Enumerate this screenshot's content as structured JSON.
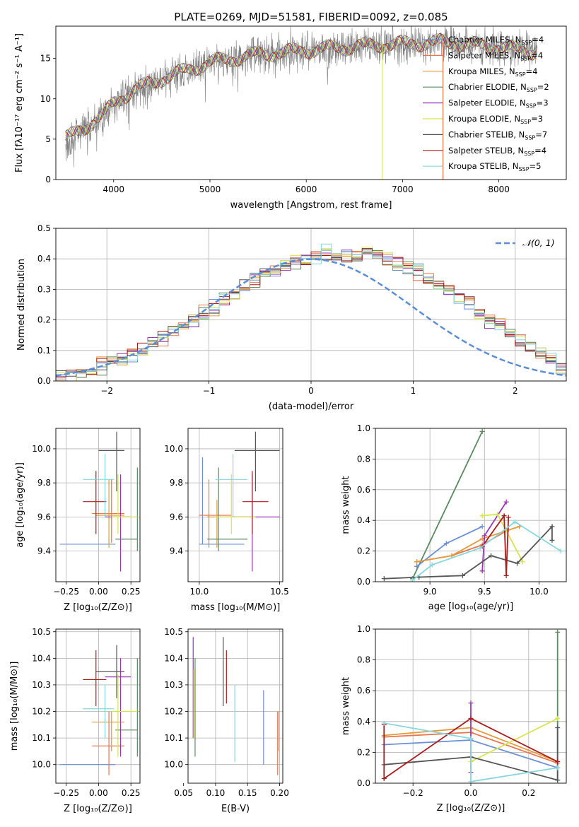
{
  "title": "PLATE=0269, MJD=51581, FIBERID=0092, z=0.085",
  "colors": {
    "cmiles": "#6b8fd6",
    "smiles": "#e9754c",
    "kmiles": "#e39a3a",
    "celodie": "#5a8a5f",
    "selodie": "#9b36b7",
    "kelodie": "#d7e54c",
    "cstelib": "#555555",
    "sstelib": "#ab1c1c",
    "kstelib": "#86d8dd",
    "data": "#7f7f7f",
    "gauss": "#5b8ed6"
  },
  "legend_models": [
    {
      "pre": "Chabrier MILES, N",
      "sub": "SSP",
      "post": "=4",
      "color": "#6b8fd6"
    },
    {
      "pre": "Salpeter MILES, N",
      "sub": "SSP",
      "post": "=4",
      "color": "#e9754c"
    },
    {
      "pre": "Kroupa MILES, N",
      "sub": "SSP",
      "post": "=4",
      "color": "#e39a3a"
    },
    {
      "pre": "Chabrier ELODIE, N",
      "sub": "SSP",
      "post": "=2",
      "color": "#5a8a5f"
    },
    {
      "pre": "Salpeter ELODIE, N",
      "sub": "SSP",
      "post": "=3",
      "color": "#9b36b7"
    },
    {
      "pre": "Kroupa ELODIE, N",
      "sub": "SSP",
      "post": "=3",
      "color": "#d7e54c"
    },
    {
      "pre": "Chabrier STELIB, N",
      "sub": "SSP",
      "post": "=7",
      "color": "#555555"
    },
    {
      "pre": "Salpeter STELIB, N",
      "sub": "SSP",
      "post": "=4",
      "color": "#ab1c1c"
    },
    {
      "pre": "Kroupa STELIB, N",
      "sub": "SSP",
      "post": "=5",
      "color": "#86d8dd"
    }
  ],
  "chart_data": [
    {
      "type": "line",
      "xlabel": "wavelength [Angstrom, rest frame]",
      "ylabel": "Flux [fλ10⁻¹⁷ erg cm⁻² s⁻¹ A⁻¹]",
      "xlim": [
        3400,
        8700
      ],
      "ylim": [
        0,
        19
      ],
      "xticks": [
        "4000",
        "5000",
        "6000",
        "7000",
        "8000"
      ],
      "yticks": [
        "0",
        "5",
        "10",
        "15"
      ],
      "continuum": {
        "x": [
          3500,
          3700,
          3900,
          4000,
          4200,
          4500,
          5000,
          5500,
          6000,
          6500,
          7000,
          7400,
          8000,
          8400
        ],
        "y": [
          5.0,
          6.5,
          8.0,
          9.5,
          11.0,
          12.5,
          14.5,
          15.5,
          16.0,
          16.5,
          16.8,
          17.0,
          16.4,
          15.8
        ]
      }
    },
    {
      "type": "bar",
      "xlabel": "(data-model)/error",
      "ylabel": "Normed distribution",
      "xlim": [
        -2.5,
        2.5
      ],
      "ylim": [
        0,
        0.5
      ],
      "xticks": [
        "−2",
        "−1",
        "0",
        "1",
        "2"
      ],
      "yticks": [
        "0.0",
        "0.1",
        "0.2",
        "0.3",
        "0.4",
        "0.5"
      ],
      "bin_width": 0.1,
      "legend": "𝒩(0, 1)",
      "hist_mean": [
        0.01,
        0.02,
        0.03,
        0.04,
        0.05,
        0.06,
        0.07,
        0.09,
        0.1,
        0.12,
        0.14,
        0.16,
        0.18,
        0.2,
        0.22,
        0.24,
        0.26,
        0.28,
        0.31,
        0.33,
        0.35,
        0.37,
        0.38,
        0.39,
        0.4,
        0.41,
        0.42,
        0.41,
        0.41,
        0.41,
        0.42,
        0.41,
        0.4,
        0.39,
        0.37,
        0.36,
        0.34,
        0.32,
        0.3,
        0.28,
        0.25,
        0.22,
        0.2,
        0.18,
        0.15,
        0.13,
        0.11,
        0.09,
        0.07,
        0.05
      ]
    },
    {
      "type": "scatter",
      "xlabel": "Z [log₁₀(Z/Z⊙)]",
      "ylabel": "age  [log₁₀(age/yr)]",
      "xlim": [
        -0.33,
        0.32
      ],
      "ylim": [
        9.22,
        10.12
      ],
      "xticks": [
        "−0.25",
        "0.00",
        "0.25"
      ],
      "yticks": [
        "9.4",
        "9.6",
        "9.8",
        "10.0"
      ],
      "points": [
        {
          "c": "#6b8fd6",
          "x": -0.05,
          "x0": -0.3,
          "x1": 0.13,
          "y": 9.44,
          "y0": 9.44,
          "y1": 9.44
        },
        {
          "c": "#e9754c",
          "x": 0.1,
          "x0": -0.05,
          "x1": 0.2,
          "y": 9.62,
          "y0": 9.45,
          "y1": 9.82
        },
        {
          "c": "#e39a3a",
          "x": 0.08,
          "x0": -0.02,
          "x1": 0.2,
          "y": 9.61,
          "y0": 9.42,
          "y1": 9.82
        },
        {
          "c": "#5a8a5f",
          "x": 0.3,
          "x0": 0.13,
          "x1": 0.3,
          "y": 9.47,
          "y0": 9.4,
          "y1": 9.89
        },
        {
          "c": "#9b36b7",
          "x": 0.17,
          "x0": 0.05,
          "x1": 0.25,
          "y": 9.6,
          "y0": 9.28,
          "y1": 9.85
        },
        {
          "c": "#d7e54c",
          "x": 0.15,
          "x0": 0.1,
          "x1": 0.3,
          "y": 9.6,
          "y0": 9.5,
          "y1": 9.85
        },
        {
          "c": "#555555",
          "x": 0.14,
          "x0": 0.0,
          "x1": 0.2,
          "y": 9.99,
          "y0": 9.75,
          "y1": 10.1
        },
        {
          "c": "#ab1c1c",
          "x": -0.02,
          "x0": -0.12,
          "x1": 0.06,
          "y": 9.69,
          "y0": 9.5,
          "y1": 9.87
        },
        {
          "c": "#86d8dd",
          "x": 0.05,
          "x0": -0.12,
          "x1": 0.12,
          "y": 9.82,
          "y0": 9.6,
          "y1": 9.97
        }
      ]
    },
    {
      "type": "scatter",
      "xlabel": "mass [log₁₀(M/M⊙)]",
      "ylabel": "",
      "xlim": [
        9.93,
        10.52
      ],
      "ylim": [
        9.22,
        10.12
      ],
      "xticks": [
        "10.0",
        "10.5"
      ],
      "yticks": [
        "9.4",
        "9.6",
        "9.8",
        "10.0"
      ],
      "points": [
        {
          "c": "#6b8fd6",
          "x": 10.02,
          "x0": 10.0,
          "x1": 10.28,
          "y": 9.44,
          "y0": 9.44,
          "y1": 9.95
        },
        {
          "c": "#e9754c",
          "x": 10.06,
          "x0": 10.0,
          "x1": 10.2,
          "y": 9.61,
          "y0": 9.42,
          "y1": 9.82
        },
        {
          "c": "#e39a3a",
          "x": 10.11,
          "x0": 10.05,
          "x1": 10.2,
          "y": 9.6,
          "y0": 9.42,
          "y1": 9.7
        },
        {
          "c": "#5a8a5f",
          "x": 10.12,
          "x0": 10.05,
          "x1": 10.3,
          "y": 9.47,
          "y0": 9.4,
          "y1": 9.89
        },
        {
          "c": "#9b36b7",
          "x": 10.33,
          "x0": 10.2,
          "x1": 10.5,
          "y": 9.6,
          "y0": 9.28,
          "y1": 9.85
        },
        {
          "c": "#d7e54c",
          "x": 10.2,
          "x0": 10.1,
          "x1": 10.35,
          "y": 9.6,
          "y0": 9.5,
          "y1": 9.85
        },
        {
          "c": "#555555",
          "x": 10.35,
          "x0": 10.22,
          "x1": 10.5,
          "y": 9.99,
          "y0": 9.75,
          "y1": 10.1
        },
        {
          "c": "#ab1c1c",
          "x": 10.33,
          "x0": 10.27,
          "x1": 10.43,
          "y": 9.69,
          "y0": 9.5,
          "y1": 9.87
        },
        {
          "c": "#86d8dd",
          "x": 10.21,
          "x0": 10.1,
          "x1": 10.3,
          "y": 9.82,
          "y0": 9.6,
          "y1": 9.97
        }
      ]
    },
    {
      "type": "line",
      "xlabel": "age  [log₁₀(age/yr)]",
      "ylabel": "mass weight",
      "xlim": [
        8.5,
        10.25
      ],
      "ylim": [
        0,
        1
      ],
      "xticks": [
        "9.0",
        "9.5",
        "10.0"
      ],
      "yticks": [
        "0.0",
        "0.2",
        "0.4",
        "0.6",
        "0.8",
        "1.0"
      ],
      "series": [
        {
          "c": "#5a8a5f",
          "x": [
            8.84,
            9.48
          ],
          "y": [
            0.02,
            0.98
          ]
        },
        {
          "c": "#6b8fd6",
          "x": [
            8.88,
            9.15,
            9.48
          ],
          "y": [
            0.1,
            0.25,
            0.36
          ]
        },
        {
          "c": "#e9754c",
          "x": [
            8.88,
            9.2,
            9.48,
            9.72
          ],
          "y": [
            0.13,
            0.17,
            0.24,
            0.34
          ]
        },
        {
          "c": "#e39a3a",
          "x": [
            8.88,
            9.2,
            9.48,
            9.82
          ],
          "y": [
            0.13,
            0.17,
            0.28,
            0.36
          ]
        },
        {
          "c": "#9b36b7",
          "x": [
            9.48,
            9.5,
            9.7
          ],
          "y": [
            0.07,
            0.3,
            0.52
          ]
        },
        {
          "c": "#d7e54c",
          "x": [
            9.48,
            9.62,
            9.85
          ],
          "y": [
            0.43,
            0.44,
            0.13
          ]
        },
        {
          "c": "#555555",
          "x": [
            8.58,
            8.9,
            9.3,
            9.56,
            9.8,
            10.12,
            10.12
          ],
          "y": [
            0.02,
            0.03,
            0.04,
            0.17,
            0.12,
            0.36,
            0.27
          ]
        },
        {
          "c": "#ab1c1c",
          "x": [
            9.48,
            9.68,
            9.7,
            9.72
          ],
          "y": [
            0.23,
            0.43,
            0.04,
            0.42
          ]
        },
        {
          "c": "#86d8dd",
          "x": [
            8.84,
            9.02,
            9.46,
            9.78,
            10.2
          ],
          "y": [
            0.01,
            0.11,
            0.22,
            0.39,
            0.2
          ]
        }
      ]
    },
    {
      "type": "scatter",
      "xlabel": "Z [log₁₀(Z/Z⊙)]",
      "ylabel": "mass [log₁₀(M/M⊙)]",
      "xlim": [
        -0.33,
        0.32
      ],
      "ylim": [
        9.93,
        10.51
      ],
      "xticks": [
        "−0.25",
        "0.00",
        "0.25"
      ],
      "yticks": [
        "10.0",
        "10.1",
        "10.2",
        "10.3",
        "10.4",
        "10.5"
      ],
      "points": [
        {
          "c": "#6b8fd6",
          "x": 0.0,
          "x0": -0.3,
          "x1": 0.13,
          "y": 10.0,
          "y0": 10.0,
          "y1": 10.0
        },
        {
          "c": "#e9754c",
          "x": 0.08,
          "x0": -0.05,
          "x1": 0.2,
          "y": 10.07,
          "y0": 9.96,
          "y1": 10.2
        },
        {
          "c": "#e39a3a",
          "x": 0.1,
          "x0": -0.05,
          "x1": 0.2,
          "y": 10.16,
          "y0": 10.05,
          "y1": 10.2
        },
        {
          "c": "#5a8a5f",
          "x": 0.3,
          "x0": 0.13,
          "x1": 0.3,
          "y": 10.13,
          "y0": 10.03,
          "y1": 10.4
        },
        {
          "c": "#9b36b7",
          "x": 0.17,
          "x0": 0.05,
          "x1": 0.25,
          "y": 10.33,
          "y0": 10.03,
          "y1": 10.4
        },
        {
          "c": "#d7e54c",
          "x": 0.15,
          "x0": 0.1,
          "x1": 0.3,
          "y": 10.2,
          "y0": 10.03,
          "y1": 10.34
        },
        {
          "c": "#555555",
          "x": 0.14,
          "x0": -0.02,
          "x1": 0.2,
          "y": 10.35,
          "y0": 10.25,
          "y1": 10.45
        },
        {
          "c": "#ab1c1c",
          "x": -0.02,
          "x0": -0.12,
          "x1": 0.06,
          "y": 10.32,
          "y0": 10.22,
          "y1": 10.43
        },
        {
          "c": "#86d8dd",
          "x": 0.05,
          "x0": -0.12,
          "x1": 0.12,
          "y": 10.21,
          "y0": 10.1,
          "y1": 10.3
        }
      ]
    },
    {
      "type": "scatter",
      "xlabel": "E(B-V)",
      "ylabel": "",
      "xlim": [
        0.057,
        0.205
      ],
      "ylim": [
        9.93,
        10.51
      ],
      "xticks": [
        "0.05",
        "0.10",
        "0.15",
        "0.20"
      ],
      "yticks": [
        "10.0",
        "10.1",
        "10.2",
        "10.3",
        "10.4",
        "10.5"
      ],
      "points": [
        {
          "c": "#6b8fd6",
          "x": 0.175,
          "y0": 10.0,
          "y1": 10.28
        },
        {
          "c": "#e9754c",
          "x": 0.197,
          "y0": 9.96,
          "y1": 10.2
        },
        {
          "c": "#e39a3a",
          "x": 0.198,
          "y0": 10.05,
          "y1": 10.2
        },
        {
          "c": "#5a8a5f",
          "x": 0.068,
          "y0": 10.03,
          "y1": 10.4
        },
        {
          "c": "#9b36b7",
          "x": 0.065,
          "y0": 10.1,
          "y1": 10.48
        },
        {
          "c": "#d7e54c",
          "x": 0.066,
          "y0": 10.1,
          "y1": 10.36
        },
        {
          "c": "#555555",
          "x": 0.112,
          "y0": 10.22,
          "y1": 10.48
        },
        {
          "c": "#ab1c1c",
          "x": 0.117,
          "y0": 10.23,
          "y1": 10.43
        },
        {
          "c": "#86d8dd",
          "x": 0.13,
          "y0": 10.01,
          "y1": 10.3
        }
      ]
    },
    {
      "type": "line",
      "xlabel": "Z [log₁₀(Z/Z⊙)]",
      "ylabel": "mass weight",
      "xlim": [
        -0.33,
        0.33
      ],
      "ylim": [
        0,
        1
      ],
      "xticks": [
        "−0.2",
        "0.0",
        "0.2"
      ],
      "yticks": [
        "0.0",
        "0.2",
        "0.4",
        "0.6",
        "0.8",
        "1.0"
      ],
      "series": [
        {
          "c": "#5a8a5f",
          "x": [
            0.3,
            0.3
          ],
          "y": [
            0.02,
            0.98
          ]
        },
        {
          "c": "#6b8fd6",
          "x": [
            -0.3,
            0.0,
            0.3
          ],
          "y": [
            0.25,
            0.28,
            0.1
          ]
        },
        {
          "c": "#e9754c",
          "x": [
            -0.3,
            0.0,
            0.3
          ],
          "y": [
            0.3,
            0.33,
            0.13
          ]
        },
        {
          "c": "#e39a3a",
          "x": [
            -0.3,
            0.0,
            0.3
          ],
          "y": [
            0.31,
            0.36,
            0.14
          ]
        },
        {
          "c": "#9b36b7",
          "x": [
            0.0,
            0.0
          ],
          "y": [
            0.07,
            0.52
          ]
        },
        {
          "c": "#d7e54c",
          "x": [
            0.0,
            0.3
          ],
          "y": [
            0.14,
            0.42
          ]
        },
        {
          "c": "#555555",
          "x": [
            -0.3,
            0.0,
            0.3,
            0.3
          ],
          "y": [
            0.12,
            0.17,
            0.02,
            0.36
          ]
        },
        {
          "c": "#ab1c1c",
          "x": [
            -0.3,
            -0.3,
            0.0,
            0.3
          ],
          "y": [
            0.38,
            0.03,
            0.42,
            0.14
          ]
        },
        {
          "c": "#86d8dd",
          "x": [
            -0.3,
            0.0,
            0.0,
            0.3
          ],
          "y": [
            0.39,
            0.29,
            0.01,
            0.1
          ]
        }
      ]
    }
  ]
}
